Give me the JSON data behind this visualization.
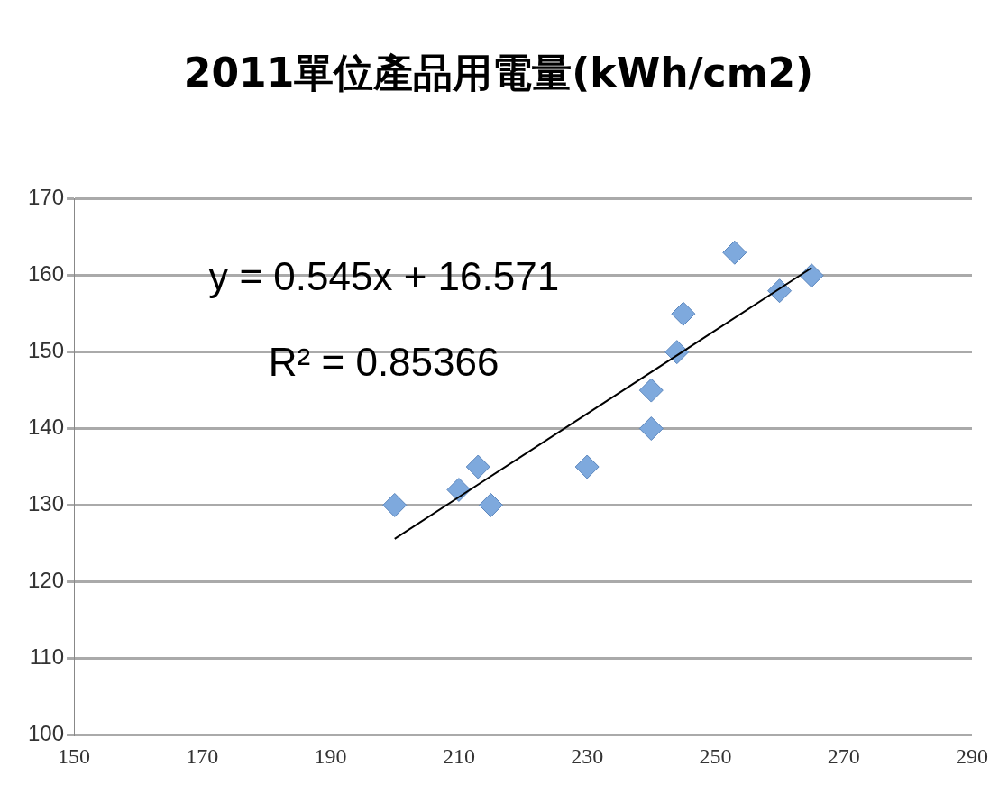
{
  "chart_data": {
    "type": "scatter",
    "title": "2011單位產品用電量(kWh/cm2)",
    "series": [
      {
        "color": "#7ea9dd",
        "marker": "diamond",
        "x": [
          200,
          210,
          213,
          215,
          230,
          240,
          240,
          244,
          245,
          253,
          260,
          265
        ],
        "values": [
          130,
          132,
          135,
          130,
          135,
          145,
          140,
          150,
          155,
          163,
          158,
          160
        ]
      },
      {
        "type": "line",
        "color": "#000000",
        "marker": "none",
        "line_style": "solid",
        "x": [
          200,
          265
        ],
        "values": [
          125.6,
          161.0
        ]
      }
    ],
    "annotations": [
      "y = 0.545x + 16.571",
      "R² = 0.85366"
    ],
    "xlim": [
      150,
      290
    ],
    "xticks": [
      150,
      170,
      190,
      210,
      230,
      250,
      270,
      290
    ],
    "ylim": [
      100,
      170
    ],
    "yticks": [
      100,
      110,
      120,
      130,
      140,
      150,
      160,
      170
    ],
    "grid": "y",
    "legend": false
  }
}
